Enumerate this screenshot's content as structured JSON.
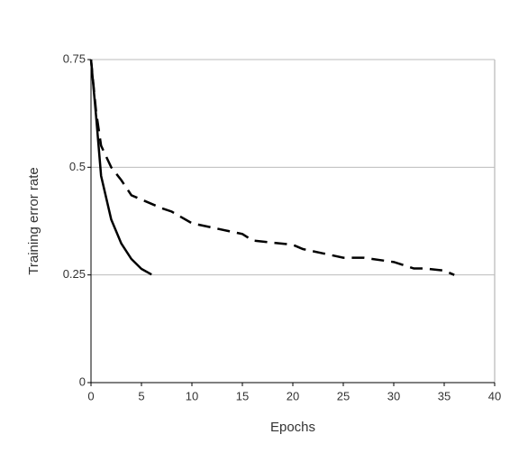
{
  "chart_data": {
    "type": "line",
    "x_label": "Epochs",
    "y_label": "Training error rate",
    "xlim": [
      0,
      40
    ],
    "xticks": [
      0,
      5,
      10,
      15,
      20,
      25,
      30,
      35,
      40
    ],
    "ylim": [
      0,
      0.75
    ],
    "yticks": [
      0,
      0.25,
      0.5,
      0.75
    ],
    "grid": true,
    "series": [
      {
        "color": "#000000",
        "dash": false,
        "x": [
          0,
          0.5,
          1,
          2,
          3,
          4,
          5,
          6
        ],
        "values": [
          0.75,
          0.62,
          0.48,
          0.379,
          0.323,
          0.287,
          0.264,
          0.251
        ]
      },
      {
        "color": "#000000",
        "dash": true,
        "x": [
          0,
          0.5,
          1,
          2,
          3,
          4,
          5,
          7,
          8,
          10,
          12,
          15,
          16,
          18,
          20,
          21,
          23,
          25,
          27,
          30,
          32,
          33,
          35,
          36
        ],
        "values": [
          0.75,
          0.63,
          0.55,
          0.5,
          0.47,
          0.435,
          0.425,
          0.405,
          0.397,
          0.37,
          0.36,
          0.345,
          0.33,
          0.325,
          0.32,
          0.31,
          0.3,
          0.29,
          0.29,
          0.28,
          0.265,
          0.265,
          0.26,
          0.25
        ]
      }
    ]
  }
}
